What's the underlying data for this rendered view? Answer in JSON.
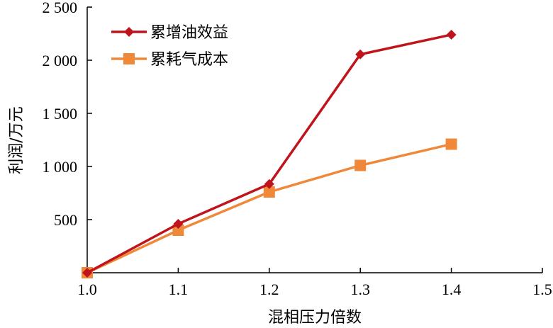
{
  "chart_data": {
    "type": "line",
    "title": "",
    "xlabel": "混相压力倍数",
    "ylabel": "利润/万元",
    "xlim": [
      1.0,
      1.5
    ],
    "ylim": [
      0,
      2500
    ],
    "x_ticks": [
      1.0,
      1.1,
      1.2,
      1.3,
      1.4,
      1.5
    ],
    "x_tick_labels": [
      "1.0",
      "1.1",
      "1.2",
      "1.3",
      "1.4",
      "1.5"
    ],
    "y_ticks": [
      500,
      1000,
      1500,
      2000,
      2500
    ],
    "y_tick_labels": [
      "500",
      "1 000",
      "1 500",
      "2 000",
      "2 500"
    ],
    "grid": false,
    "legend_position": "top-left",
    "series": [
      {
        "name": "累增油效益",
        "marker": "diamond",
        "color": "#c0141c",
        "x": [
          1.0,
          1.1,
          1.2,
          1.3,
          1.4
        ],
        "y": [
          0,
          460,
          835,
          2055,
          2240
        ]
      },
      {
        "name": "累耗气成本",
        "marker": "square",
        "color": "#f0883a",
        "x": [
          1.0,
          1.1,
          1.2,
          1.3,
          1.4
        ],
        "y": [
          0,
          400,
          760,
          1010,
          1210
        ]
      }
    ]
  }
}
